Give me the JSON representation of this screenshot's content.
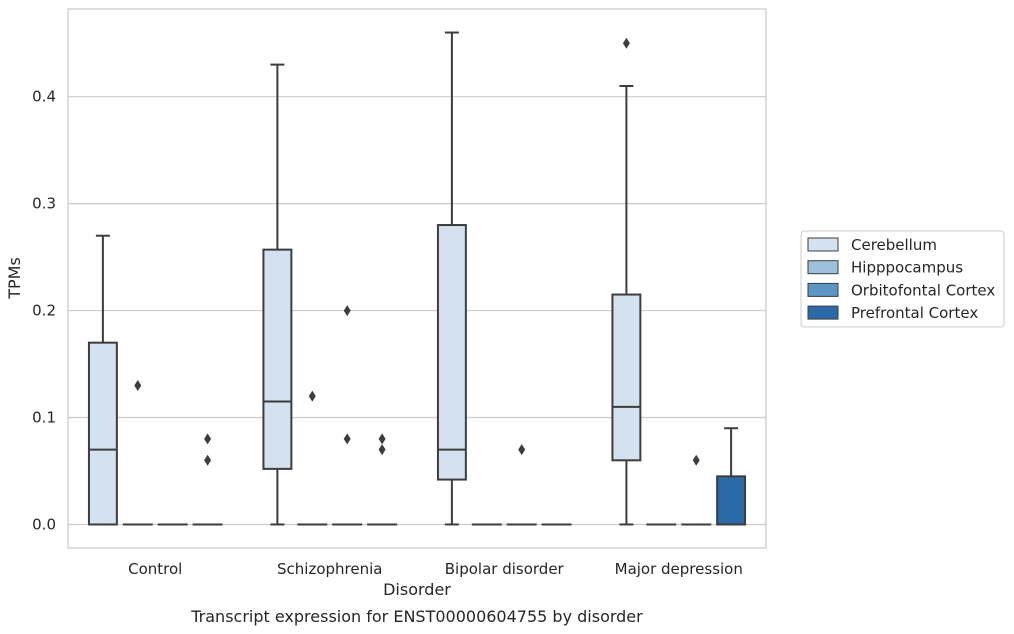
{
  "caption": "Transcript expression for ENST00000604755 by disorder",
  "chart_data": {
    "type": "box",
    "xlabel": "Disorder",
    "ylabel": "TPMs",
    "ylim": [
      -0.022,
      0.482
    ],
    "yticks": [
      0.0,
      0.1,
      0.2,
      0.3,
      0.4
    ],
    "ytick_labels": [
      "0.0",
      "0.1",
      "0.2",
      "0.3",
      "0.4"
    ],
    "grid": "horizontal",
    "legend_position": "right",
    "categories": [
      "Control",
      "Schizophrenia",
      "Bipolar disorder",
      "Major depression"
    ],
    "series": [
      {
        "name": "Cerebellum",
        "color": "#d4e2f0",
        "boxes": [
          {
            "min": 0.0,
            "q1": 0.0,
            "median": 0.07,
            "q3": 0.17,
            "max": 0.27,
            "outliers": []
          },
          {
            "min": 0.0,
            "q1": 0.052,
            "median": 0.115,
            "q3": 0.257,
            "max": 0.43,
            "outliers": []
          },
          {
            "min": 0.0,
            "q1": 0.042,
            "median": 0.07,
            "q3": 0.28,
            "max": 0.46,
            "outliers": []
          },
          {
            "min": 0.0,
            "q1": 0.06,
            "median": 0.11,
            "q3": 0.215,
            "max": 0.41,
            "outliers": [
              0.45
            ]
          }
        ]
      },
      {
        "name": "Hipppocampus",
        "color": "#9ec1db",
        "boxes": [
          {
            "min": 0.0,
            "q1": 0.0,
            "median": 0.0,
            "q3": 0.0,
            "max": 0.0,
            "outliers": [
              0.13
            ]
          },
          {
            "min": 0.0,
            "q1": 0.0,
            "median": 0.0,
            "q3": 0.0,
            "max": 0.0,
            "outliers": [
              0.12
            ]
          },
          {
            "min": 0.0,
            "q1": 0.0,
            "median": 0.0,
            "q3": 0.0,
            "max": 0.0,
            "outliers": []
          },
          {
            "min": 0.0,
            "q1": 0.0,
            "median": 0.0,
            "q3": 0.0,
            "max": 0.0,
            "outliers": []
          }
        ]
      },
      {
        "name": "Orbitofontal Cortex",
        "color": "#5b96c4",
        "boxes": [
          {
            "min": 0.0,
            "q1": 0.0,
            "median": 0.0,
            "q3": 0.0,
            "max": 0.0,
            "outliers": []
          },
          {
            "min": 0.0,
            "q1": 0.0,
            "median": 0.0,
            "q3": 0.0,
            "max": 0.0,
            "outliers": [
              0.2,
              0.08
            ]
          },
          {
            "min": 0.0,
            "q1": 0.0,
            "median": 0.0,
            "q3": 0.0,
            "max": 0.0,
            "outliers": [
              0.07
            ]
          },
          {
            "min": 0.0,
            "q1": 0.0,
            "median": 0.0,
            "q3": 0.0,
            "max": 0.0,
            "outliers": [
              0.06
            ]
          }
        ]
      },
      {
        "name": "Prefrontal Cortex",
        "color": "#2a6aa8",
        "boxes": [
          {
            "min": 0.0,
            "q1": 0.0,
            "median": 0.0,
            "q3": 0.0,
            "max": 0.0,
            "outliers": [
              0.08,
              0.06
            ]
          },
          {
            "min": 0.0,
            "q1": 0.0,
            "median": 0.0,
            "q3": 0.0,
            "max": 0.0,
            "outliers": [
              0.08,
              0.07
            ]
          },
          {
            "min": 0.0,
            "q1": 0.0,
            "median": 0.0,
            "q3": 0.0,
            "max": 0.0,
            "outliers": []
          },
          {
            "min": 0.0,
            "q1": 0.0,
            "median": 0.0,
            "q3": 0.045,
            "max": 0.09,
            "outliers": []
          }
        ]
      }
    ]
  }
}
